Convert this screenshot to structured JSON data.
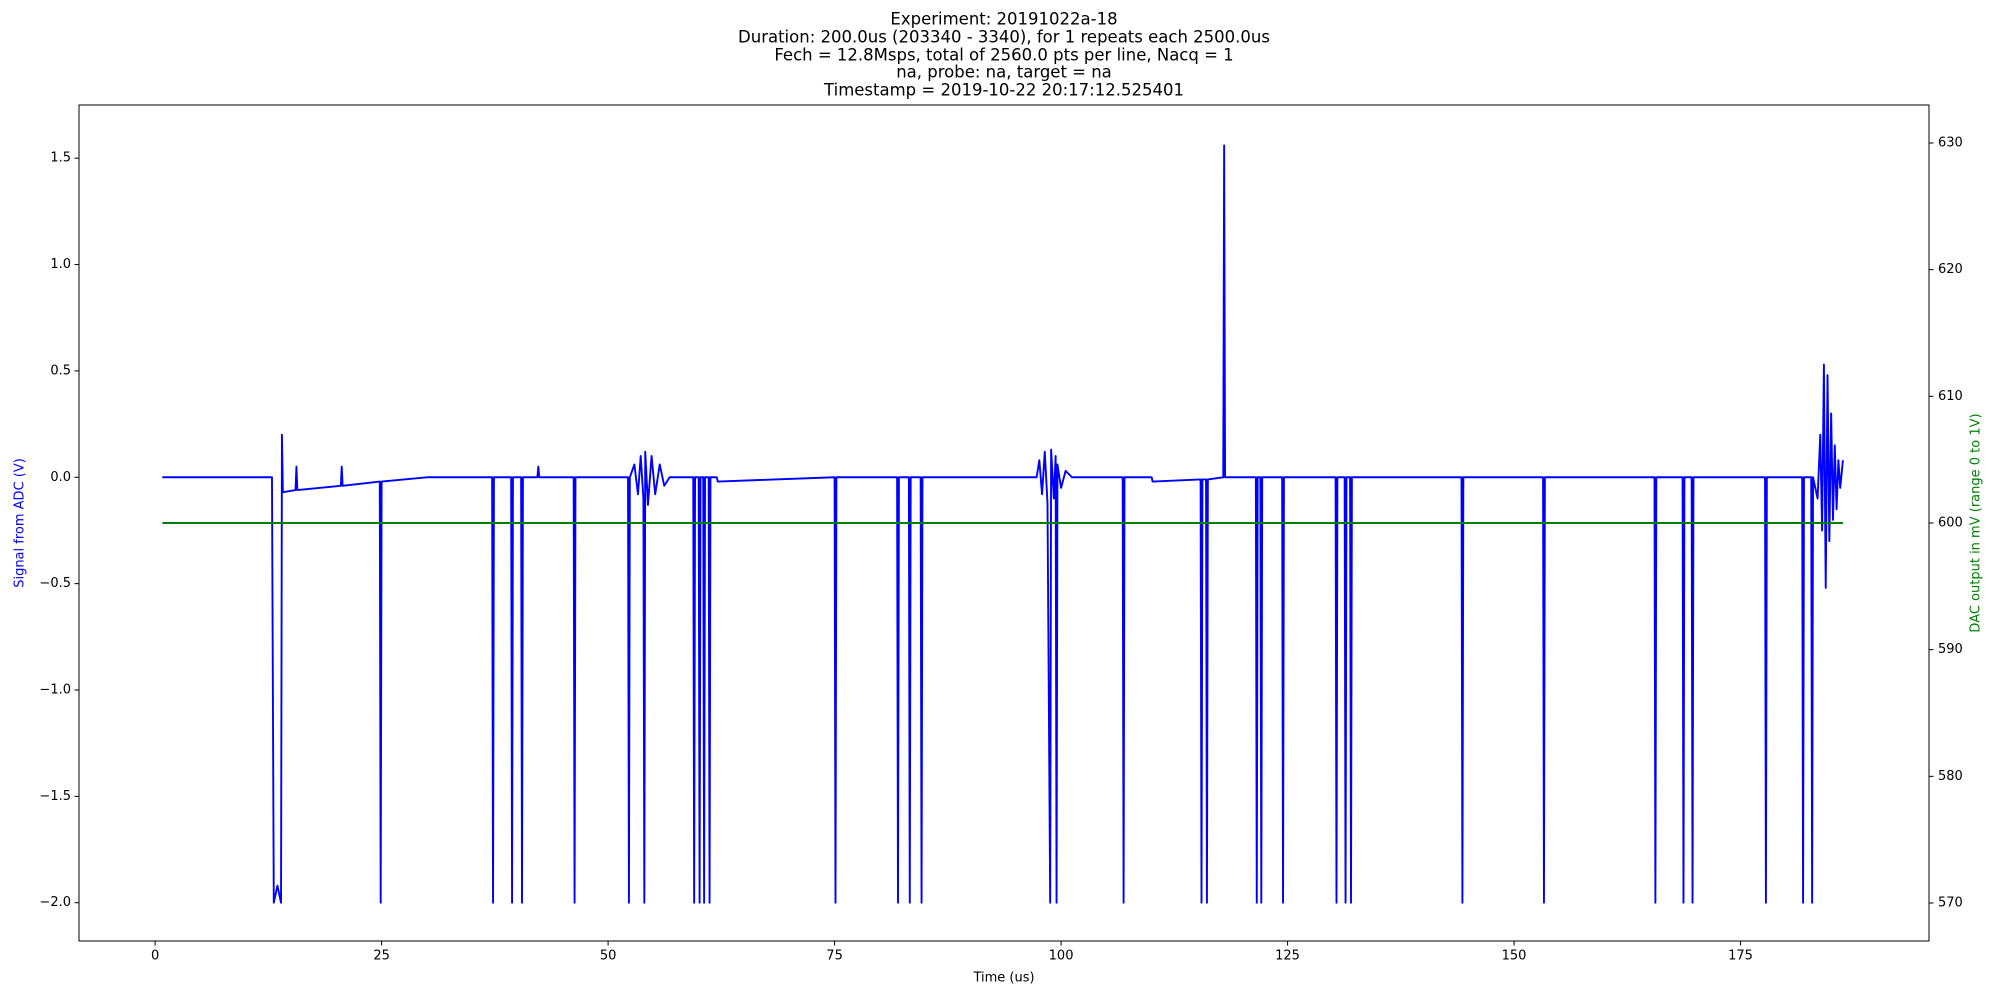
{
  "chart_data": {
    "type": "line",
    "title": [
      "Experiment: 20191022a-18",
      "Duration: 200.0us (203340 - 3340), for 1 repeats each 2500.0us",
      "Fech = 12.8Msps, total of 2560.0 pts per line, Nacq = 1",
      "na, probe: na, target = na",
      "Timestamp = 2019-10-22 20:17:12.525401"
    ],
    "xlabel": "Time (us)",
    "ylabel": "Signal from ADC (V)",
    "y2label": "DAC output in mV (range 0 to 1V)",
    "ylabel_color": "#0000ff",
    "y2label_color": "#008000",
    "xlim": [
      -8.4,
      195.8
    ],
    "ylim": [
      -2.18,
      1.75
    ],
    "y2lim": [
      567,
      633
    ],
    "xticks": [
      0,
      25,
      50,
      75,
      100,
      125,
      150,
      175
    ],
    "yticks": [
      {
        "value": -2,
        "label": "−2.0"
      },
      {
        "value": -1.5,
        "label": "−1.5"
      },
      {
        "value": -1,
        "label": "−1.0"
      },
      {
        "value": -0.5,
        "label": "−0.5"
      },
      {
        "value": 0,
        "label": "0.0"
      },
      0.5,
      {
        "value": 1,
        "label": "1.0"
      },
      1.5
    ],
    "y2ticks": [
      570,
      580,
      590,
      600,
      610,
      620,
      630
    ],
    "grid": false,
    "series": [
      {
        "color": "#0000ff",
        "axis": "y",
        "x": [
          0.8,
          12.9,
          13.1,
          13.5,
          13.9,
          14.0,
          14.1,
          15.5,
          15.6,
          15.7,
          20.5,
          20.6,
          20.7,
          24.8,
          24.9,
          25.0,
          30,
          37.2,
          37.3,
          37.4,
          39.3,
          39.4,
          39.5,
          40.4,
          40.5,
          40.6,
          42.2,
          42.3,
          42.4,
          46.2,
          46.3,
          46.4,
          52.2,
          52.3,
          52.4,
          52.9,
          53.3,
          53.6,
          53.9,
          54.0,
          54.1,
          54.4,
          54.8,
          55.2,
          55.7,
          56.2,
          56.8,
          59.4,
          59.5,
          59.6,
          60.0,
          60.1,
          60.2,
          60.5,
          60.6,
          60.7,
          61.1,
          61.2,
          61.3,
          62.0,
          62.1,
          75.0,
          75.1,
          75.2,
          81.9,
          82.0,
          82.1,
          83.2,
          83.3,
          83.4,
          84.5,
          84.6,
          84.7,
          97.3,
          97.6,
          97.9,
          98.2,
          98.5,
          98.8,
          98.9,
          99.2,
          99.4,
          99.5,
          99.6,
          100.0,
          100.5,
          101.2,
          106.8,
          106.9,
          107.0,
          110.0,
          110.1,
          115.4,
          115.5,
          115.6,
          116.0,
          116.1,
          116.2,
          117.9,
          118.0,
          118.1,
          121.5,
          121.6,
          121.7,
          122.0,
          122.1,
          122.2,
          124.4,
          124.5,
          124.6,
          130.3,
          130.4,
          130.5,
          131.3,
          131.4,
          131.5,
          131.9,
          132.0,
          132.1,
          144.2,
          144.3,
          144.4,
          153.2,
          153.3,
          153.4,
          165.5,
          165.6,
          165.7,
          168.6,
          168.7,
          168.8,
          169.6,
          169.7,
          169.8,
          177.7,
          177.8,
          177.9,
          181.8,
          181.9,
          182.0,
          182.8,
          182.9,
          183.0,
          183.5,
          183.8,
          184.0,
          184.2,
          184.4,
          184.6,
          184.8,
          185.0,
          185.2,
          185.4,
          185.6,
          185.8,
          186.0,
          186.3
        ],
        "values": [
          0,
          0,
          -2,
          -1.92,
          -2,
          0.2,
          -0.07,
          -0.06,
          0.05,
          -0.06,
          -0.04,
          0.05,
          -0.04,
          -0.02,
          -2,
          -0.02,
          0,
          0,
          -2,
          0,
          0,
          -2,
          0,
          0,
          -2,
          0,
          0,
          0.05,
          0,
          0,
          -2,
          0,
          0,
          -2,
          0,
          0.06,
          -0.08,
          0.1,
          -0.1,
          -2,
          0.12,
          -0.13,
          0.1,
          -0.08,
          0.06,
          -0.04,
          0,
          0,
          -2,
          0,
          0,
          -2,
          0,
          0,
          -2,
          0,
          0,
          -2,
          0,
          0,
          -0.02,
          0,
          -2,
          0,
          0,
          -2,
          0,
          0,
          -2,
          0,
          0,
          -2,
          0,
          0,
          0.08,
          -0.08,
          0.12,
          -0.12,
          -2,
          0.13,
          -0.1,
          0.1,
          -2,
          0.06,
          -0.05,
          0.03,
          0,
          0,
          -2,
          0,
          0,
          -0.02,
          -0.01,
          -2,
          -0.01,
          -0.01,
          -2,
          -0.01,
          0,
          1.56,
          0,
          0,
          -2,
          0,
          0,
          -2,
          0,
          0,
          -2,
          0,
          0,
          -2,
          0,
          0,
          -2,
          0,
          0,
          -2,
          0,
          0,
          -2,
          0,
          0,
          -2,
          0,
          0,
          -2,
          0,
          0,
          -2,
          0,
          0,
          -2,
          0,
          0,
          -2,
          0,
          0,
          -2,
          0,
          0,
          -2,
          0,
          -0.1,
          0.2,
          -0.25,
          0.53,
          -0.52,
          0.48,
          -0.3,
          0.3,
          -0.2,
          0.15,
          -0.15,
          0.08,
          -0.05,
          0.08
        ]
      },
      {
        "color": "#008000",
        "axis": "y2",
        "x": [
          0.8,
          186.3
        ],
        "values": [
          600,
          600
        ]
      }
    ]
  }
}
